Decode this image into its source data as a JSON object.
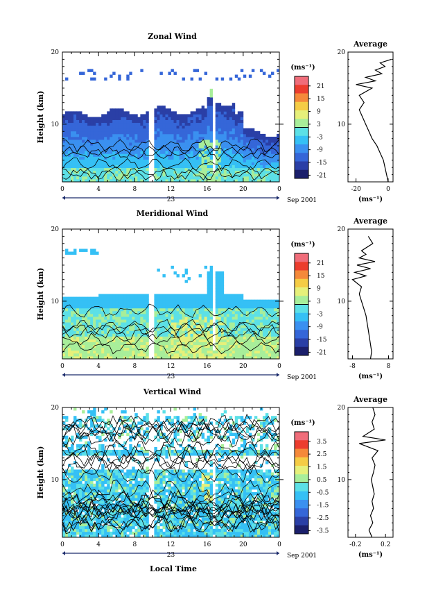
{
  "figure": {
    "footer_label": "Local Time"
  },
  "colors": {
    "palette": [
      "#1b1f6b",
      "#2a3fa6",
      "#3566d8",
      "#3a90f0",
      "#35c0f5",
      "#5ce0e6",
      "#a8ee9a",
      "#e6f07a",
      "#f5cc45",
      "#f5893a",
      "#ec3d2e",
      "#f06d7a"
    ],
    "contour": "#000000",
    "missing": "#ffffff"
  },
  "chart_data": [
    {
      "type": "heatmap",
      "title": "Zonal Wind",
      "ylabel": "Height (km)",
      "xlim": [
        0,
        24
      ],
      "ylim": [
        2,
        20
      ],
      "x_ticks": [
        "0",
        "4",
        "8",
        "12",
        "16",
        "20",
        "0"
      ],
      "y_ticks": [
        "20",
        "10"
      ],
      "date_day": "23",
      "date_month": "Sep 2001",
      "colorbar": {
        "unit": "(ms⁻¹)",
        "ticks": [
          "21",
          "15",
          "9",
          "3",
          "-3",
          "-9",
          "-15",
          "-21"
        ],
        "range": [
          -24,
          24
        ]
      },
      "profile": {
        "title": "Average",
        "unit": "(ms⁻¹)",
        "x_ticks": [
          "-20",
          "0"
        ],
        "y_ticks": [
          "20",
          "10"
        ],
        "xlim": [
          -25,
          3
        ],
        "points": [
          [
            0,
            2
          ],
          [
            -1,
            3
          ],
          [
            -2,
            4
          ],
          [
            -3,
            5
          ],
          [
            -5,
            6
          ],
          [
            -7,
            7
          ],
          [
            -10,
            8
          ],
          [
            -12,
            9
          ],
          [
            -14,
            10
          ],
          [
            -16,
            11
          ],
          [
            -18,
            12
          ],
          [
            -15,
            13
          ],
          [
            -18,
            14
          ],
          [
            -10,
            15
          ],
          [
            -20,
            15.5
          ],
          [
            -8,
            16
          ],
          [
            -14,
            16.5
          ],
          [
            -4,
            17
          ],
          [
            -8,
            17.5
          ],
          [
            -2,
            18
          ],
          [
            -5,
            18.5
          ],
          [
            2,
            19
          ]
        ]
      }
    },
    {
      "type": "heatmap",
      "title": "Meridional Wind",
      "ylabel": "Height (km)",
      "xlim": [
        0,
        24
      ],
      "ylim": [
        2,
        20
      ],
      "x_ticks": [
        "0",
        "4",
        "8",
        "12",
        "16",
        "20",
        "0"
      ],
      "y_ticks": [
        "20",
        "10"
      ],
      "date_day": "23",
      "date_month": "Sep 2001",
      "colorbar": {
        "unit": "(ms⁻¹)",
        "ticks": [
          "21",
          "15",
          "9",
          "3",
          "-3",
          "-9",
          "-15",
          "-21"
        ],
        "range": [
          -24,
          24
        ]
      },
      "profile": {
        "title": "Average",
        "unit": "(ms⁻¹)",
        "x_ticks": [
          "-8",
          "8"
        ],
        "y_ticks": [
          "20",
          "10"
        ],
        "xlim": [
          -10,
          10
        ],
        "points": [
          [
            0,
            2
          ],
          [
            0.5,
            3
          ],
          [
            0,
            4
          ],
          [
            -0.5,
            5
          ],
          [
            -1,
            6
          ],
          [
            -1.5,
            7
          ],
          [
            -2,
            8
          ],
          [
            -3,
            9
          ],
          [
            -4,
            10
          ],
          [
            -5,
            11
          ],
          [
            -4,
            12
          ],
          [
            -8,
            13
          ],
          [
            -2,
            13.5
          ],
          [
            -7,
            14
          ],
          [
            0,
            14.5
          ],
          [
            -6,
            15
          ],
          [
            2,
            15.5
          ],
          [
            -5,
            16
          ],
          [
            -2,
            16.5
          ],
          [
            -4,
            17
          ],
          [
            1,
            18
          ],
          [
            -1,
            19
          ]
        ]
      }
    },
    {
      "type": "heatmap",
      "title": "Vertical Wind",
      "ylabel": "Height (km)",
      "xlim": [
        0,
        24
      ],
      "ylim": [
        2,
        20
      ],
      "x_ticks": [
        "0",
        "4",
        "8",
        "12",
        "16",
        "20",
        "0"
      ],
      "y_ticks": [
        "20",
        "10"
      ],
      "date_day": "23",
      "date_month": "Sep 2001",
      "colorbar": {
        "unit": "(ms⁻¹)",
        "ticks": [
          "3.5",
          "2.5",
          "1.5",
          "0.5",
          "-0.5",
          "-1.5",
          "-2.5",
          "-3.5"
        ],
        "range": [
          -4,
          4
        ]
      },
      "profile": {
        "title": "Average",
        "unit": "(ms⁻¹)",
        "x_ticks": [
          "-0.2",
          "0.2"
        ],
        "y_ticks": [
          "20",
          "10"
        ],
        "xlim": [
          -0.3,
          0.3
        ],
        "points": [
          [
            0.02,
            2
          ],
          [
            -0.02,
            3
          ],
          [
            0.03,
            4
          ],
          [
            0,
            5
          ],
          [
            0.04,
            6
          ],
          [
            0.02,
            7
          ],
          [
            0.05,
            8
          ],
          [
            0.03,
            9
          ],
          [
            0.01,
            10
          ],
          [
            0.04,
            11
          ],
          [
            0.06,
            12
          ],
          [
            0.02,
            13
          ],
          [
            0.1,
            14
          ],
          [
            -0.15,
            15
          ],
          [
            0.2,
            15.5
          ],
          [
            -0.1,
            16
          ],
          [
            0.05,
            17
          ],
          [
            0.02,
            18
          ],
          [
            0.06,
            19
          ],
          [
            0.03,
            20
          ]
        ]
      }
    }
  ]
}
